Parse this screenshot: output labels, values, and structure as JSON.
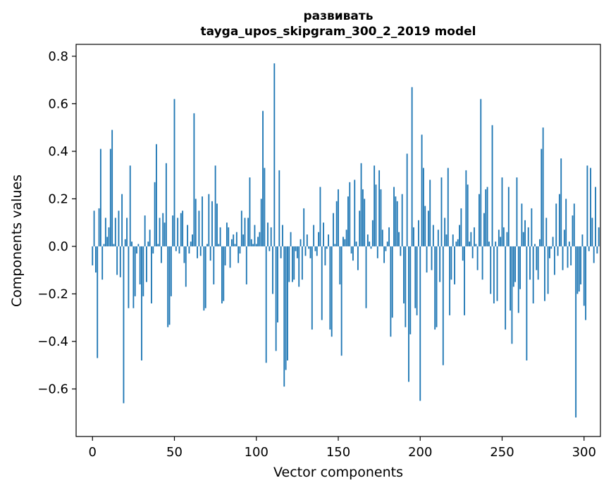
{
  "chart_data": {
    "type": "bar",
    "title": "развивать",
    "subtitle": "tayga_upos_skipgram_300_2_2019 model",
    "xlabel": "Vector components",
    "ylabel": "Components values",
    "xlim": [
      -10,
      310
    ],
    "ylim": [
      -0.8,
      0.85
    ],
    "x_ticks": [
      0,
      50,
      100,
      150,
      200,
      250,
      300
    ],
    "x_tick_labels": [
      "0",
      "50",
      "100",
      "150",
      "200",
      "250",
      "300"
    ],
    "y_ticks": [
      -0.6,
      -0.4,
      -0.2,
      0.0,
      0.2,
      0.4,
      0.6,
      0.8
    ],
    "y_tick_labels": [
      "−0.6",
      "−0.4",
      "−0.2",
      "0.0",
      "0.2",
      "0.4",
      "0.6",
      "0.8"
    ],
    "bar_color": "#1f77b4",
    "series": [
      {
        "name": "развивать",
        "values": [
          -0.08,
          0.15,
          -0.11,
          -0.47,
          0.16,
          0.41,
          -0.14,
          0.01,
          0.12,
          0.04,
          0.08,
          0.41,
          0.49,
          0.01,
          0.12,
          -0.12,
          0.15,
          -0.13,
          0.22,
          -0.66,
          0.03,
          0.12,
          -0.26,
          0.34,
          0.02,
          -0.26,
          -0.21,
          -0.03,
          0.01,
          -0.16,
          -0.48,
          -0.21,
          0.13,
          -0.15,
          0.02,
          0.07,
          -0.24,
          -0.03,
          0.27,
          0.43,
          0.01,
          0.12,
          -0.07,
          0.14,
          0.1,
          0.35,
          -0.34,
          -0.33,
          -0.21,
          0.13,
          0.62,
          -0.02,
          0.12,
          -0.03,
          0.14,
          0.15,
          -0.07,
          -0.17,
          0.09,
          -0.03,
          0.02,
          0.05,
          0.56,
          0.2,
          -0.05,
          0.15,
          -0.04,
          0.21,
          -0.27,
          -0.26,
          0.01,
          0.22,
          -0.06,
          0.19,
          -0.16,
          0.34,
          0.18,
          0.01,
          0.08,
          -0.24,
          -0.23,
          -0.08,
          0.1,
          0.08,
          -0.09,
          0.03,
          0.05,
          0.01,
          0.06,
          -0.07,
          -0.03,
          0.15,
          0.05,
          0.12,
          -0.16,
          0.12,
          0.29,
          0.03,
          0.01,
          0.09,
          0.01,
          0.04,
          0.06,
          0.2,
          0.57,
          0.33,
          -0.49,
          0.1,
          -0.02,
          0.08,
          -0.2,
          0.77,
          -0.44,
          -0.32,
          0.32,
          -0.05,
          0.09,
          -0.59,
          -0.52,
          -0.48,
          -0.15,
          0.06,
          -0.15,
          -0.14,
          -0.02,
          -0.05,
          -0.17,
          0.03,
          -0.14,
          0.16,
          -0.04,
          0.05,
          -0.01,
          -0.05,
          -0.35,
          0.09,
          -0.02,
          -0.04,
          0.06,
          0.25,
          -0.31,
          0.1,
          -0.08,
          -0.01,
          0.05,
          -0.35,
          -0.38,
          0.14,
          0.01,
          0.19,
          0.24,
          -0.16,
          -0.46,
          0.04,
          0.03,
          0.07,
          0.21,
          0.27,
          -0.03,
          -0.06,
          0.28,
          0.02,
          -0.1,
          0.15,
          0.35,
          0.24,
          0.2,
          -0.26,
          0.05,
          0.02,
          -0.01,
          0.11,
          0.34,
          0.26,
          -0.05,
          0.32,
          0.24,
          0.07,
          -0.07,
          -0.02,
          0.02,
          0.08,
          -0.38,
          -0.3,
          0.25,
          0.21,
          0.19,
          0.06,
          -0.04,
          0.22,
          -0.24,
          -0.34,
          0.39,
          -0.57,
          -0.37,
          0.67,
          0.08,
          -0.26,
          -0.29,
          0.11,
          -0.65,
          0.47,
          0.33,
          0.17,
          -0.11,
          0.15,
          0.28,
          -0.1,
          0.09,
          -0.35,
          -0.34,
          0.07,
          -0.15,
          0.29,
          -0.5,
          0.12,
          0.05,
          0.33,
          -0.29,
          -0.14,
          0.05,
          -0.16,
          0.02,
          0.03,
          0.09,
          0.16,
          -0.06,
          -0.29,
          0.32,
          0.26,
          0.02,
          0.06,
          -0.05,
          0.08,
          0.01,
          -0.1,
          0.22,
          0.62,
          -0.14,
          0.14,
          0.24,
          0.25,
          0.02,
          -0.2,
          0.51,
          -0.24,
          0.02,
          -0.23,
          0.07,
          0.04,
          0.29,
          0.08,
          -0.35,
          0.06,
          0.25,
          -0.27,
          -0.41,
          -0.17,
          -0.15,
          0.29,
          -0.28,
          -0.18,
          0.18,
          0.06,
          0.11,
          -0.48,
          0.08,
          -0.14,
          0.16,
          -0.24,
          0.01,
          -0.1,
          -0.14,
          0.03,
          0.41,
          0.5,
          -0.23,
          0.12,
          -0.2,
          -0.05,
          -0.01,
          0.04,
          -0.12,
          0.18,
          -0.04,
          0.22,
          0.37,
          -0.1,
          0.07,
          0.2,
          -0.09,
          0.02,
          -0.08,
          0.13,
          0.18,
          -0.72,
          -0.2,
          -0.19,
          -0.16,
          0.05,
          -0.25,
          -0.31,
          0.34,
          -0.02,
          0.33,
          0.12,
          -0.07,
          0.25,
          -0.03,
          0.08
        ]
      }
    ]
  }
}
